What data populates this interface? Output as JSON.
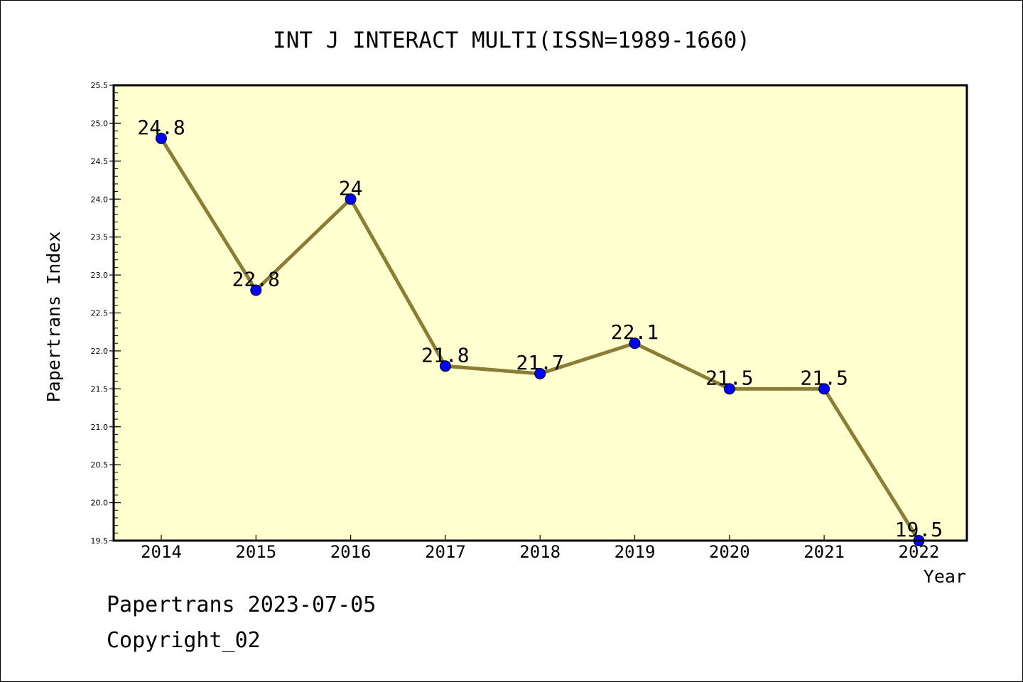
{
  "chart_data": {
    "type": "line",
    "title": "INT J INTERACT MULTI(ISSN=1989-1660)",
    "xlabel": "Year",
    "ylabel": "Papertrans Index",
    "categories": [
      "2014",
      "2015",
      "2016",
      "2017",
      "2018",
      "2019",
      "2020",
      "2021",
      "2022"
    ],
    "values": [
      24.8,
      22.8,
      24,
      21.8,
      21.7,
      22.1,
      21.5,
      21.5,
      19.5
    ],
    "data_labels": [
      "24.8",
      "22.8",
      "24",
      "21.8",
      "21.7",
      "22.1",
      "21.5",
      "21.5",
      "19.5"
    ],
    "ylim": [
      19.5,
      25.5
    ],
    "yticks": [
      "19.5",
      "20.0",
      "20.5",
      "21.0",
      "21.5",
      "22.0",
      "22.5",
      "23.0",
      "23.5",
      "24.0",
      "24.5",
      "25.0",
      "25.5"
    ],
    "grid": false,
    "colors": {
      "plot_background": "#ffffd0",
      "line": "#8b7d35",
      "marker": "#0000ff"
    }
  },
  "footer": {
    "line1": "Papertrans 2023-07-05",
    "line2": "Copyright_02"
  }
}
